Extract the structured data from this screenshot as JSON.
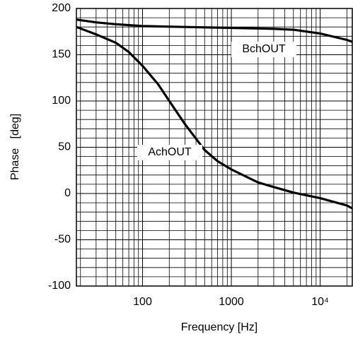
{
  "chart_data": {
    "type": "line",
    "xlabel": "Frequency  [Hz]",
    "ylabel": "Phase   [deg]",
    "xscale": "log",
    "xlim": [
      18,
      23000
    ],
    "ylim": [
      -100,
      200
    ],
    "xticks": [
      100,
      1000,
      {
        "value": 10000,
        "label": "10⁴"
      }
    ],
    "yticks": [
      -100,
      -50,
      0,
      50,
      100,
      150,
      200
    ],
    "xminorticks": [
      20,
      30,
      40,
      50,
      60,
      70,
      80,
      90,
      200,
      300,
      400,
      500,
      600,
      700,
      800,
      900,
      2000,
      3000,
      4000,
      5000,
      6000,
      7000,
      8000,
      9000,
      20000
    ],
    "yminorticks": [
      -90,
      -80,
      -70,
      -60,
      -40,
      -30,
      -20,
      -10,
      10,
      20,
      30,
      40,
      60,
      70,
      80,
      90,
      110,
      120,
      130,
      140,
      160,
      170,
      180,
      190
    ],
    "grid": true,
    "series": [
      {
        "name": "AchOUT",
        "color": "#000000",
        "x": [
          18,
          30,
          50,
          70,
          100,
          150,
          200,
          300,
          500,
          700,
          1000,
          2000,
          3000,
          5000,
          10000,
          20000,
          23000
        ],
        "values": [
          180,
          172,
          163,
          153,
          138,
          118,
          100,
          75,
          47,
          35,
          26,
          12,
          7,
          1,
          -5,
          -13,
          -16
        ]
      },
      {
        "name": "BchOUT",
        "color": "#000000",
        "x": [
          18,
          30,
          50,
          100,
          300,
          1000,
          3000,
          5000,
          10000,
          20000,
          23000
        ],
        "values": [
          188,
          185,
          183,
          181,
          180,
          179,
          178,
          177,
          173,
          166,
          164
        ]
      }
    ]
  }
}
